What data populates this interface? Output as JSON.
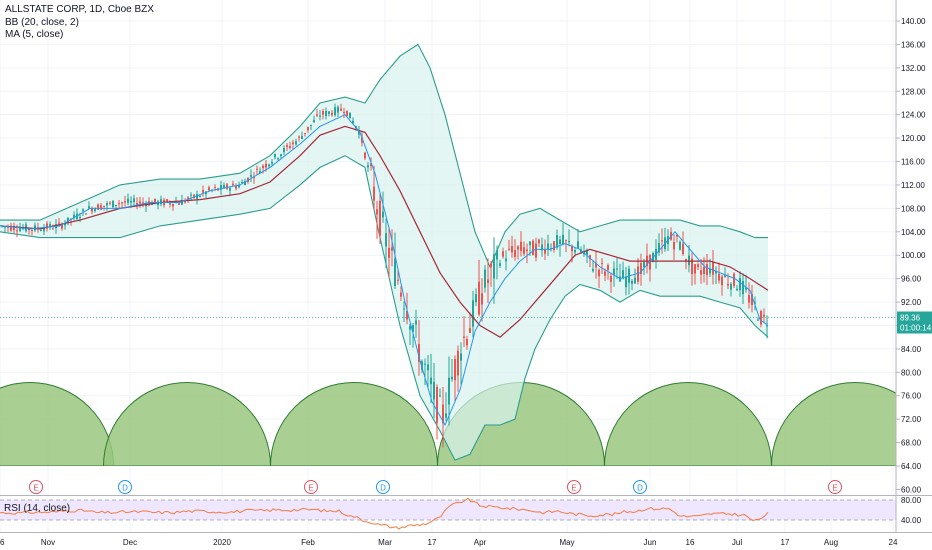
{
  "legend": {
    "symbol": "ALLSTATE CORP, 1D, Cboe BZX",
    "bb": "BB (20, close, 2)",
    "ma": "MA (5, close)"
  },
  "rsi_panel": {
    "label": "RSI (14, close)"
  },
  "colors": {
    "up": "#26a69a",
    "down": "#ef5350",
    "bb_band": "#2a9d8f",
    "bb_fill": "#d9f2ee",
    "basis": "#a52a3a",
    "ma": "#2196f3",
    "arc_fill": "#9bc77f",
    "arc_stroke": "#2e7d32",
    "rsi_line": "#f57c3e",
    "rsi_fill": "#efe6ff",
    "price_tag": "#26a69a"
  },
  "chart_data": {
    "type": "candlestick",
    "y_axis": {
      "range": [
        58,
        142
      ],
      "ticks": [
        140,
        136,
        132,
        128,
        124,
        120,
        116,
        112,
        108,
        104,
        100,
        96,
        92,
        88,
        84,
        80,
        76,
        72,
        68,
        64,
        60
      ]
    },
    "x_axis": {
      "ticks": [
        {
          "label": "6",
          "x": 0
        },
        {
          "label": "Nov",
          "x": 48
        },
        {
          "label": "Dec",
          "x": 130
        },
        {
          "label": "2020",
          "x": 222
        },
        {
          "label": "Feb",
          "x": 308
        },
        {
          "label": "Mar",
          "x": 385
        },
        {
          "label": "17",
          "x": 432
        },
        {
          "label": "Apr",
          "x": 480
        },
        {
          "label": "May",
          "x": 567
        },
        {
          "label": "Jun",
          "x": 650
        },
        {
          "label": "16",
          "x": 690
        },
        {
          "label": "Jul",
          "x": 737
        },
        {
          "label": "17",
          "x": 785
        },
        {
          "label": "Aug",
          "x": 831
        },
        {
          "label": "24",
          "x": 893
        }
      ]
    },
    "last_price": {
      "value": "89.36",
      "countdown": "01:00:14"
    },
    "events": [
      {
        "letter": "E",
        "x": 36,
        "type": "earnings"
      },
      {
        "letter": "D",
        "x": 125,
        "type": "dividend"
      },
      {
        "letter": "E",
        "x": 311,
        "type": "earnings"
      },
      {
        "letter": "D",
        "x": 383,
        "type": "dividend"
      },
      {
        "letter": "E",
        "x": 574,
        "type": "earnings"
      },
      {
        "letter": "D",
        "x": 640,
        "type": "dividend"
      },
      {
        "letter": "E",
        "x": 835,
        "type": "earnings"
      }
    ],
    "bb_upper": [
      [
        0,
        106
      ],
      [
        40,
        106
      ],
      [
        80,
        109
      ],
      [
        120,
        112
      ],
      [
        160,
        113
      ],
      [
        200,
        113
      ],
      [
        240,
        114
      ],
      [
        270,
        117
      ],
      [
        300,
        122
      ],
      [
        320,
        126
      ],
      [
        345,
        127
      ],
      [
        365,
        126
      ],
      [
        380,
        130
      ],
      [
        400,
        134
      ],
      [
        418,
        136
      ],
      [
        430,
        132
      ],
      [
        445,
        124
      ],
      [
        460,
        114
      ],
      [
        475,
        104
      ],
      [
        490,
        98
      ],
      [
        505,
        104
      ],
      [
        520,
        107
      ],
      [
        540,
        108
      ],
      [
        560,
        106
      ],
      [
        580,
        104
      ],
      [
        600,
        105
      ],
      [
        620,
        106
      ],
      [
        640,
        106
      ],
      [
        660,
        106
      ],
      [
        680,
        106
      ],
      [
        700,
        105
      ],
      [
        720,
        105
      ],
      [
        740,
        104
      ],
      [
        755,
        103
      ],
      [
        768,
        103
      ]
    ],
    "bb_lower": [
      [
        0,
        104
      ],
      [
        40,
        103
      ],
      [
        80,
        103
      ],
      [
        120,
        103
      ],
      [
        160,
        105
      ],
      [
        200,
        106
      ],
      [
        240,
        107
      ],
      [
        270,
        108
      ],
      [
        300,
        112
      ],
      [
        320,
        115
      ],
      [
        345,
        117
      ],
      [
        365,
        115
      ],
      [
        380,
        103
      ],
      [
        400,
        88
      ],
      [
        420,
        76
      ],
      [
        440,
        70
      ],
      [
        455,
        65
      ],
      [
        470,
        66
      ],
      [
        485,
        71
      ],
      [
        500,
        71
      ],
      [
        515,
        72
      ],
      [
        525,
        79
      ],
      [
        535,
        84
      ],
      [
        550,
        89
      ],
      [
        565,
        93
      ],
      [
        580,
        95
      ],
      [
        600,
        94
      ],
      [
        620,
        92
      ],
      [
        640,
        94
      ],
      [
        660,
        93
      ],
      [
        680,
        93
      ],
      [
        700,
        93
      ],
      [
        720,
        92
      ],
      [
        740,
        91
      ],
      [
        755,
        88
      ],
      [
        768,
        86
      ]
    ],
    "bb_basis": [
      [
        0,
        105
      ],
      [
        40,
        104.5
      ],
      [
        80,
        106
      ],
      [
        120,
        108
      ],
      [
        160,
        109
      ],
      [
        200,
        109.5
      ],
      [
        240,
        110.5
      ],
      [
        270,
        112.5
      ],
      [
        300,
        117
      ],
      [
        320,
        120.5
      ],
      [
        345,
        122
      ],
      [
        365,
        121
      ],
      [
        380,
        117
      ],
      [
        400,
        111
      ],
      [
        420,
        104
      ],
      [
        440,
        97
      ],
      [
        460,
        92
      ],
      [
        480,
        88
      ],
      [
        500,
        86
      ],
      [
        520,
        89
      ],
      [
        540,
        93
      ],
      [
        560,
        97
      ],
      [
        575,
        100
      ],
      [
        590,
        101
      ],
      [
        610,
        100
      ],
      [
        630,
        99
      ],
      [
        650,
        99
      ],
      [
        670,
        99
      ],
      [
        690,
        99
      ],
      [
        710,
        99
      ],
      [
        730,
        98
      ],
      [
        750,
        96
      ],
      [
        768,
        94
      ]
    ],
    "ma5": [
      [
        0,
        105
      ],
      [
        30,
        104.5
      ],
      [
        60,
        105
      ],
      [
        90,
        108
      ],
      [
        120,
        108
      ],
      [
        150,
        109
      ],
      [
        180,
        109
      ],
      [
        210,
        111
      ],
      [
        240,
        112
      ],
      [
        270,
        115
      ],
      [
        300,
        119
      ],
      [
        320,
        122
      ],
      [
        345,
        124
      ],
      [
        360,
        121
      ],
      [
        375,
        114
      ],
      [
        390,
        104
      ],
      [
        405,
        92
      ],
      [
        420,
        82
      ],
      [
        432,
        75
      ],
      [
        445,
        71
      ],
      [
        460,
        77
      ],
      [
        475,
        87
      ],
      [
        490,
        92
      ],
      [
        505,
        96
      ],
      [
        520,
        99
      ],
      [
        535,
        101
      ],
      [
        550,
        101
      ],
      [
        565,
        102
      ],
      [
        580,
        101
      ],
      [
        600,
        98
      ],
      [
        620,
        96
      ],
      [
        640,
        97
      ],
      [
        660,
        101
      ],
      [
        675,
        104
      ],
      [
        690,
        101
      ],
      [
        705,
        98
      ],
      [
        720,
        97
      ],
      [
        735,
        96
      ],
      [
        750,
        94
      ],
      [
        760,
        89
      ],
      [
        768,
        88
      ]
    ],
    "candles_anchor": [
      [
        0,
        105
      ],
      [
        30,
        104.5
      ],
      [
        60,
        105
      ],
      [
        90,
        108
      ],
      [
        120,
        109
      ],
      [
        150,
        109
      ],
      [
        180,
        109
      ],
      [
        210,
        111
      ],
      [
        240,
        112
      ],
      [
        270,
        116
      ],
      [
        300,
        120
      ],
      [
        320,
        124
      ],
      [
        345,
        125
      ],
      [
        360,
        121
      ],
      [
        372,
        112
      ],
      [
        385,
        103
      ],
      [
        398,
        96
      ],
      [
        410,
        90
      ],
      [
        422,
        82
      ],
      [
        432,
        77
      ],
      [
        442,
        72
      ],
      [
        452,
        79
      ],
      [
        462,
        85
      ],
      [
        472,
        89
      ],
      [
        482,
        94
      ],
      [
        492,
        97
      ],
      [
        505,
        100
      ],
      [
        520,
        101
      ],
      [
        535,
        101
      ],
      [
        550,
        102
      ],
      [
        565,
        102
      ],
      [
        580,
        101
      ],
      [
        595,
        98
      ],
      [
        610,
        97
      ],
      [
        625,
        96
      ],
      [
        640,
        97
      ],
      [
        655,
        100
      ],
      [
        668,
        103
      ],
      [
        680,
        102
      ],
      [
        695,
        97
      ],
      [
        710,
        98
      ],
      [
        725,
        96
      ],
      [
        740,
        95
      ],
      [
        752,
        92
      ],
      [
        762,
        89
      ],
      [
        768,
        89
      ]
    ],
    "rsi": {
      "levels": [
        "80.00",
        "40.00"
      ],
      "range": [
        20,
        100
      ]
    },
    "arcs": [
      30,
      187,
      354,
      521,
      688,
      855
    ]
  }
}
